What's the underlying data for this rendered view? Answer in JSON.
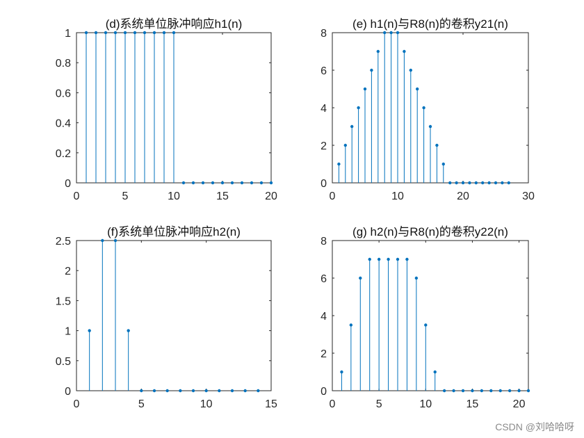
{
  "colors": {
    "stem": "#0072BD",
    "axis": "#262626"
  },
  "watermark": "CSDN @刘哈哈呀",
  "chart_data": [
    {
      "type": "stem",
      "title": "(d)系统单位脉冲响应h1(n)",
      "xlim": [
        0,
        20
      ],
      "ylim": [
        0,
        1
      ],
      "xticks": [
        0,
        5,
        10,
        15,
        20
      ],
      "yticks": [
        0,
        0.2,
        0.4,
        0.6,
        0.8,
        1
      ],
      "x": [
        1,
        2,
        3,
        4,
        5,
        6,
        7,
        8,
        9,
        10,
        11,
        12,
        13,
        14,
        15,
        16,
        17,
        18,
        19,
        20
      ],
      "y": [
        1,
        1,
        1,
        1,
        1,
        1,
        1,
        1,
        1,
        1,
        0,
        0,
        0,
        0,
        0,
        0,
        0,
        0,
        0,
        0
      ]
    },
    {
      "type": "stem",
      "title": "(e) h1(n)与R8(n)的卷积y21(n)",
      "xlim": [
        0,
        30
      ],
      "ylim": [
        0,
        8
      ],
      "xticks": [
        0,
        10,
        20,
        30
      ],
      "yticks": [
        0,
        2,
        4,
        6,
        8
      ],
      "x": [
        1,
        2,
        3,
        4,
        5,
        6,
        7,
        8,
        9,
        10,
        11,
        12,
        13,
        14,
        15,
        16,
        17,
        18,
        19,
        20,
        21,
        22,
        23,
        24,
        25,
        26,
        27
      ],
      "y": [
        1,
        2,
        3,
        4,
        5,
        6,
        7,
        8,
        8,
        8,
        7,
        6,
        5,
        4,
        3,
        2,
        1,
        0,
        0,
        0,
        0,
        0,
        0,
        0,
        0,
        0,
        0
      ]
    },
    {
      "type": "stem",
      "title": "(f)系统单位脉冲响应h2(n)",
      "xlim": [
        0,
        15
      ],
      "ylim": [
        0,
        2.5
      ],
      "xticks": [
        0,
        5,
        10,
        15
      ],
      "yticks": [
        0,
        0.5,
        1,
        1.5,
        2,
        2.5
      ],
      "x": [
        1,
        2,
        3,
        4,
        5,
        6,
        7,
        8,
        9,
        10,
        11,
        12,
        13,
        14
      ],
      "y": [
        1,
        2.5,
        2.5,
        1,
        0,
        0,
        0,
        0,
        0,
        0,
        0,
        0,
        0,
        0
      ]
    },
    {
      "type": "stem",
      "title": "(g) h2(n)与R8(n)的卷积y22(n)",
      "xlim": [
        0,
        21
      ],
      "ylim": [
        0,
        8
      ],
      "xticks": [
        0,
        5,
        10,
        15,
        20
      ],
      "yticks": [
        0,
        2,
        4,
        6,
        8
      ],
      "x": [
        1,
        2,
        3,
        4,
        5,
        6,
        7,
        8,
        9,
        10,
        11,
        12,
        13,
        14,
        15,
        16,
        17,
        18,
        19,
        20,
        21
      ],
      "y": [
        1,
        3.5,
        6,
        7,
        7,
        7,
        7,
        7,
        6,
        3.5,
        1,
        0,
        0,
        0,
        0,
        0,
        0,
        0,
        0,
        0,
        0
      ]
    }
  ]
}
